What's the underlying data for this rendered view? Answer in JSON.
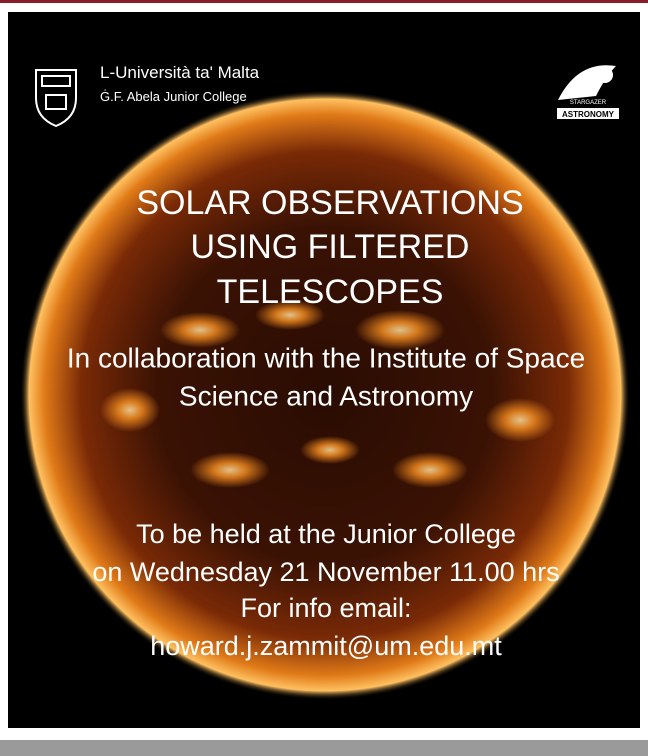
{
  "header": {
    "university": "L-Università ta' Malta",
    "college": "Ġ.F. Abela Junior College",
    "logo_text": [
      "STARGAZER",
      "ASTRONOMY"
    ]
  },
  "title": {
    "lines": [
      "SOLAR OBSERVATIONS",
      "USING FILTERED",
      "TELESCOPES"
    ]
  },
  "subtitle": {
    "lines": [
      "In collaboration with the Institute of Space",
      "Science and Astronomy"
    ]
  },
  "details": {
    "lines": [
      "To be held at the Junior College",
      "on Wednesday 21 November 11.00 hrs",
      "For info email:",
      "howard.j.zammit@um.edu.mt"
    ]
  }
}
